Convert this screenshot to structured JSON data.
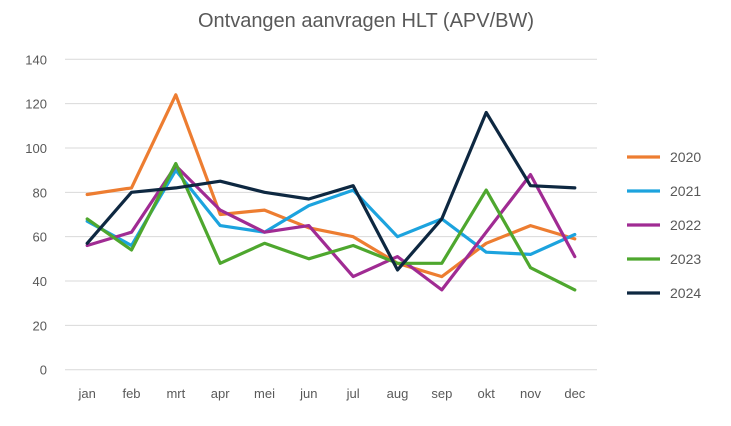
{
  "chart_data": {
    "type": "line",
    "title": "Ontvangen aanvragen HLT (APV/BW)",
    "xlabel": "",
    "ylabel": "",
    "categories": [
      "jan",
      "feb",
      "mrt",
      "apr",
      "mei",
      "jun",
      "jul",
      "aug",
      "sep",
      "okt",
      "nov",
      "dec"
    ],
    "ylim": [
      0,
      140
    ],
    "yticks": [
      0,
      20,
      40,
      60,
      80,
      100,
      120,
      140
    ],
    "grid": true,
    "legend_position": "right",
    "series": [
      {
        "name": "2020",
        "color": "#ED7D31",
        "values": [
          79,
          82,
          124,
          70,
          72,
          64,
          60,
          48,
          42,
          57,
          65,
          59
        ]
      },
      {
        "name": "2021",
        "color": "#1CA3DE",
        "values": [
          67,
          56,
          90,
          65,
          62,
          74,
          81,
          60,
          68,
          53,
          52,
          61
        ]
      },
      {
        "name": "2022",
        "color": "#A02B93",
        "values": [
          56,
          62,
          92,
          72,
          62,
          65,
          42,
          51,
          36,
          62,
          88,
          51
        ]
      },
      {
        "name": "2023",
        "color": "#4EA72E",
        "values": [
          68,
          54,
          93,
          48,
          57,
          50,
          56,
          48,
          48,
          81,
          46,
          36
        ]
      },
      {
        "name": "2024",
        "color": "#0E2841",
        "values": [
          57,
          80,
          82,
          85,
          80,
          77,
          83,
          45,
          68,
          116,
          83,
          82
        ]
      }
    ]
  }
}
